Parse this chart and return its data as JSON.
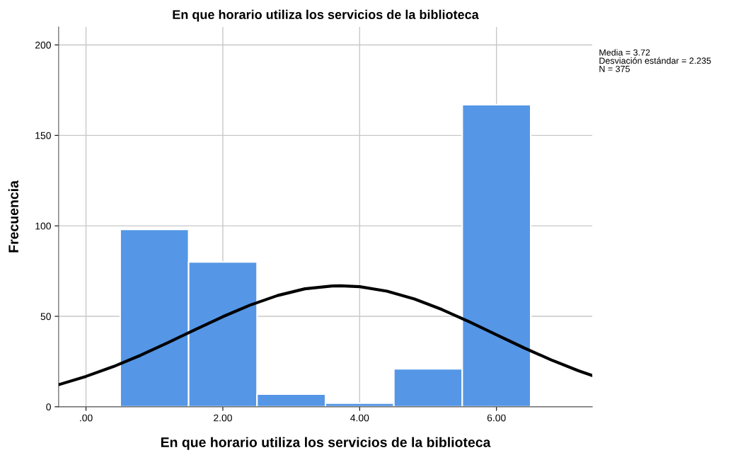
{
  "chart_data": {
    "type": "histogram",
    "title": "En que horario utiliza los servicios de la biblioteca",
    "xlabel": "En que horario utiliza los servicios de la biblioteca",
    "ylabel": "Frecuencia",
    "annotations": [
      "Media = 3.72",
      "Desviación estándar = 2.235",
      "N = 375"
    ],
    "series": [
      {
        "bins": [
          0.5,
          1.5,
          2.5,
          3.5,
          4.5,
          5.5,
          6.5
        ],
        "values": [
          98,
          80,
          7,
          2,
          21,
          167
        ],
        "color": "#5596e6"
      },
      {
        "type": "line",
        "color": "#000000",
        "x": [
          -0.4,
          0,
          0.4,
          0.8,
          1.2,
          1.6,
          2.0,
          2.4,
          2.8,
          3.2,
          3.6,
          3.72,
          4.0,
          4.4,
          4.8,
          5.2,
          5.6,
          6.0,
          6.4,
          6.8,
          7.2,
          7.4
        ],
        "values": [
          12.2,
          16.8,
          22.2,
          28.5,
          35.5,
          42.7,
          49.8,
          56.2,
          61.5,
          65.2,
          66.8,
          66.9,
          66.4,
          63.9,
          59.6,
          53.8,
          47.0,
          39.8,
          32.6,
          25.9,
          19.9,
          17.3
        ]
      }
    ],
    "xlim": [
      -0.4,
      7.4
    ],
    "xticks": [
      {
        "value": 0,
        "label": ".00"
      },
      {
        "value": 2,
        "label": "2.00"
      },
      {
        "value": 4,
        "label": "4.00"
      },
      {
        "value": 6,
        "label": "6.00"
      }
    ],
    "ylim": [
      0,
      210
    ],
    "yticks": [
      0,
      50,
      100,
      150,
      200
    ],
    "grid": true
  }
}
